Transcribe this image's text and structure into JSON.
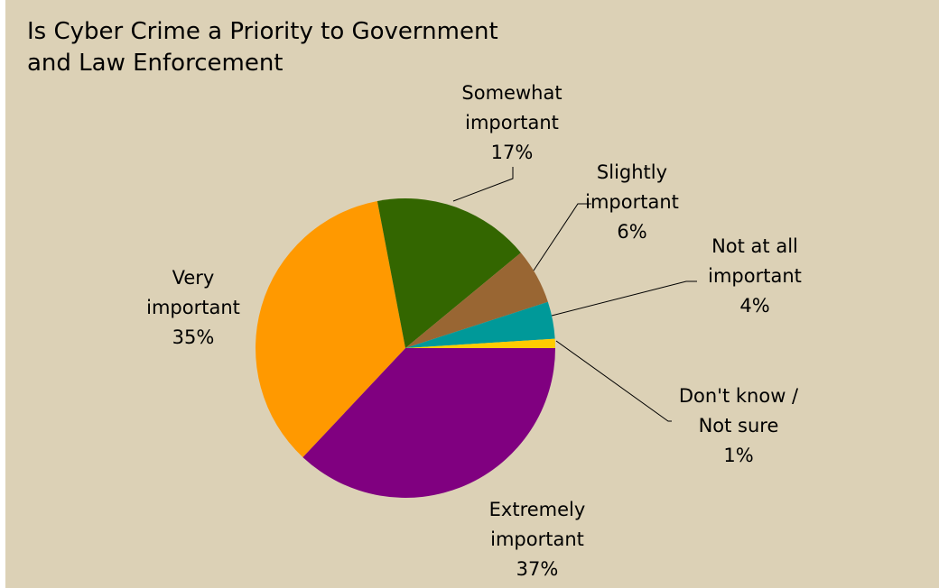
{
  "chart_data": {
    "type": "pie",
    "title_lines": [
      "Is Cyber Crime a Priority to Government",
      "and Law Enforcement"
    ],
    "start_angle_deg": 0,
    "direction": "clockwise",
    "legend": "none",
    "slices": [
      {
        "name": "Extremely important",
        "label_lines": [
          "Extremely",
          "important"
        ],
        "value": 37,
        "value_label": "37%",
        "color": "#800080"
      },
      {
        "name": "Very important",
        "label_lines": [
          "Very",
          "important"
        ],
        "value": 35,
        "value_label": "35%",
        "color": "#ff9900"
      },
      {
        "name": "Somewhat important",
        "label_lines": [
          "Somewhat",
          "important"
        ],
        "value": 17,
        "value_label": "17%",
        "color": "#336600"
      },
      {
        "name": "Slightly important",
        "label_lines": [
          "Slightly",
          "important"
        ],
        "value": 6,
        "value_label": "6%",
        "color": "#996633"
      },
      {
        "name": "Not at all important",
        "label_lines": [
          "Not at all",
          "important"
        ],
        "value": 4,
        "value_label": "4%",
        "color": "#009999"
      },
      {
        "name": "Don't know / Not sure",
        "label_lines": [
          "Don't know /",
          "Not sure"
        ],
        "value": 1,
        "value_label": "1%",
        "color": "#ffcc00"
      }
    ]
  }
}
